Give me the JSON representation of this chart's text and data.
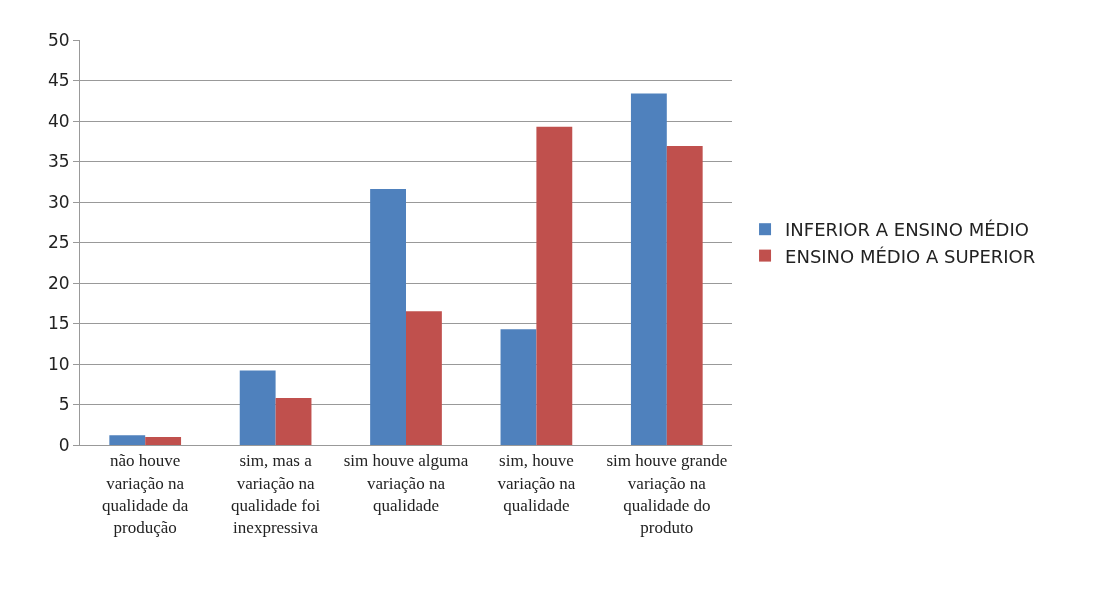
{
  "chart_data": {
    "type": "bar",
    "categories": [
      "não houve variação na qualidade da produção",
      "sim, mas a variação na qualidade foi inexpressiva",
      "sim houve alguma variação na qualidade",
      "sim, houve variação na qualidade",
      "sim houve grande variação na qualidade do produto"
    ],
    "series": [
      {
        "name": "INFERIOR A ENSINO MÉDIO",
        "color": "#4f81bd",
        "values": [
          1.2,
          9.2,
          31.6,
          14.3,
          43.4
        ]
      },
      {
        "name": "ENSINO MÉDIO A SUPERIOR",
        "color": "#c0504d",
        "values": [
          1.0,
          5.8,
          16.5,
          39.3,
          36.9
        ]
      }
    ],
    "ylim": [
      0,
      50
    ],
    "yticks": [
      0,
      5,
      10,
      15,
      20,
      25,
      30,
      35,
      40,
      45,
      50
    ],
    "grid": "y",
    "legend": "right"
  }
}
